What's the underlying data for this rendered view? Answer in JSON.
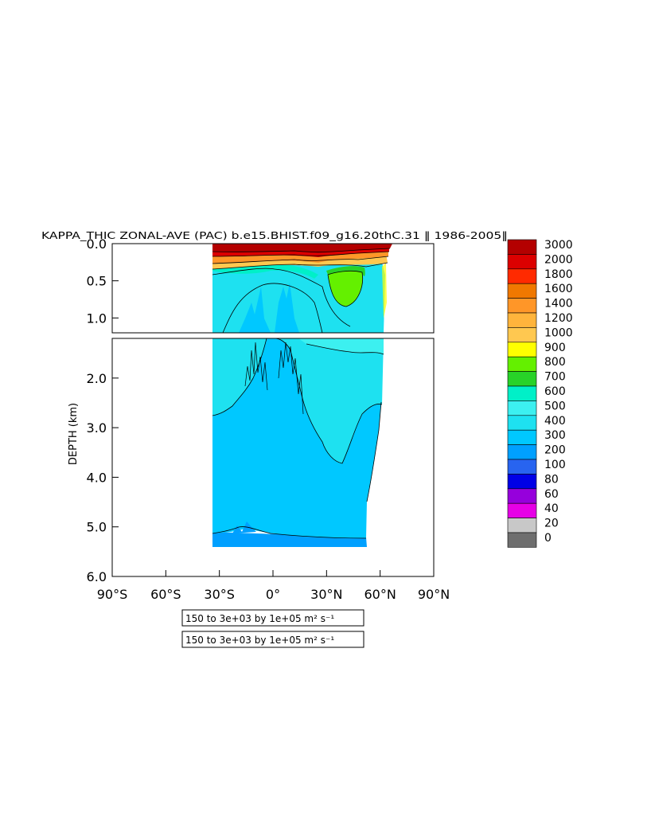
{
  "chart_data": {
    "type": "heatmap",
    "title": "KAPPA_THIC ZONAL-AVE (PAC) b.e15.BHIST.f09_g16.20thC.31 ‖ 1986-2005‖",
    "ylabel": "DEPTH (km)",
    "xlabel": "",
    "x_ticks": [
      "90°S",
      "60°S",
      "30°S",
      "0°",
      "30°N",
      "60°N",
      "90°N"
    ],
    "x_values": [
      -90,
      -60,
      -30,
      0,
      30,
      60,
      90
    ],
    "xlim": [
      -90,
      90
    ],
    "upper_panel": {
      "ylim": [
        0.0,
        1.2
      ],
      "y_ticks": [
        "0.0",
        "0.5",
        "1.0"
      ],
      "y_values": [
        0.0,
        0.5,
        1.0
      ]
    },
    "lower_panel": {
      "ylim": [
        1.2,
        6.0
      ],
      "y_ticks": [
        "2.0",
        "3.0",
        "4.0",
        "5.0",
        "6.0"
      ],
      "y_values": [
        2.0,
        3.0,
        4.0,
        5.0,
        6.0
      ]
    },
    "colorbar": {
      "levels": [
        "3000",
        "2000",
        "1800",
        "1600",
        "1400",
        "1200",
        "1000",
        "900",
        "800",
        "700",
        "600",
        "500",
        "400",
        "300",
        "200",
        "100",
        "80",
        "60",
        "40",
        "20",
        "0"
      ],
      "colors": [
        "#b40000",
        "#dc0000",
        "#ff2a00",
        "#f07800",
        "#ff9628",
        "#ffb43c",
        "#ffc850",
        "#ffff00",
        "#64f000",
        "#28d228",
        "#00f0c8",
        "#3cf0f0",
        "#1ee1f0",
        "#00c8ff",
        "#00a0ff",
        "#2864f0",
        "#0000e6",
        "#9600dc",
        "#e600e6",
        "#c8c8c8",
        "#6e6e6e"
      ]
    },
    "field_regions": [
      {
        "level": "3000",
        "lat": [
          -34,
          63
        ],
        "depth": [
          0.0,
          0.12
        ]
      },
      {
        "level": "1400",
        "lat": [
          -34,
          60
        ],
        "depth": [
          0.1,
          0.28
        ]
      },
      {
        "level": "800",
        "lat": [
          35,
          55
        ],
        "depth": [
          0.3,
          0.7
        ]
      },
      {
        "level": "400",
        "lat": [
          -34,
          60
        ],
        "depth": [
          0.2,
          2.2
        ]
      },
      {
        "level": "300",
        "lat": [
          -34,
          60
        ],
        "depth": [
          1.2,
          5.2
        ]
      },
      {
        "level": "200",
        "lat": [
          -34,
          53
        ],
        "depth": [
          5.2,
          5.35
        ]
      }
    ],
    "contour_legend": [
      "150 to 3e+03 by 1e+05 m² s⁻¹",
      "150 to 3e+03 by 1e+05 m² s⁻¹"
    ]
  }
}
